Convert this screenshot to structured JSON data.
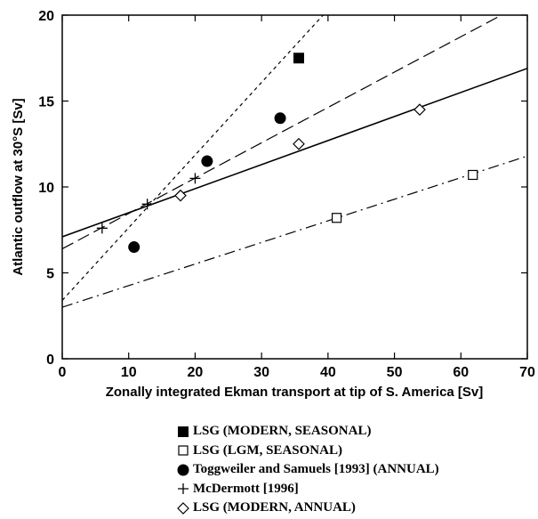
{
  "chart_data": {
    "type": "scatter",
    "xlabel": "Zonally integrated Ekman transport at tip of S. America [Sv]",
    "ylabel": "Atlantic outflow at 30°S [Sv]",
    "xlim": [
      0,
      70
    ],
    "ylim": [
      0,
      20
    ],
    "x_ticks": [
      "0",
      "10",
      "20",
      "30",
      "40",
      "50",
      "60",
      "70"
    ],
    "y_ticks": [
      "0",
      "5",
      "10",
      "15",
      "20"
    ],
    "grid": false,
    "legend_position": "bottom",
    "series": [
      {
        "name": "LSG (MODERN, SEASONAL)",
        "marker": "filled-square",
        "points": [
          [
            35.6,
            17.5
          ]
        ]
      },
      {
        "name": "LSG (LGM, SEASONAL)",
        "marker": "open-square",
        "points": [
          [
            41.3,
            8.2
          ],
          [
            61.8,
            10.7
          ]
        ]
      },
      {
        "name": "Toggweiler and Samuels [1993] (ANNUAL)",
        "marker": "filled-circle",
        "points": [
          [
            10.8,
            6.5
          ],
          [
            21.8,
            11.5
          ],
          [
            32.8,
            14.0
          ]
        ]
      },
      {
        "name": "McDermott [1996]",
        "marker": "plus",
        "points": [
          [
            6.0,
            7.6
          ],
          [
            12.8,
            9.0
          ],
          [
            20.0,
            10.5
          ]
        ]
      },
      {
        "name": "LSG (MODERN, ANNUAL)",
        "marker": "open-diamond",
        "points": [
          [
            17.8,
            9.5
          ],
          [
            35.6,
            12.5
          ],
          [
            53.8,
            14.5
          ]
        ]
      }
    ],
    "fit_lines": [
      {
        "style": "solid",
        "x": [
          0,
          70
        ],
        "y": [
          7.1,
          16.9
        ]
      },
      {
        "style": "long-dash",
        "x": [
          0,
          70
        ],
        "y": [
          6.4,
          20.8
        ]
      },
      {
        "style": "short-dash",
        "x": [
          0,
          70
        ],
        "y": [
          3.4,
          33.0
        ]
      },
      {
        "style": "dash-dot",
        "x": [
          0,
          70
        ],
        "y": [
          3.0,
          11.8
        ]
      }
    ]
  }
}
